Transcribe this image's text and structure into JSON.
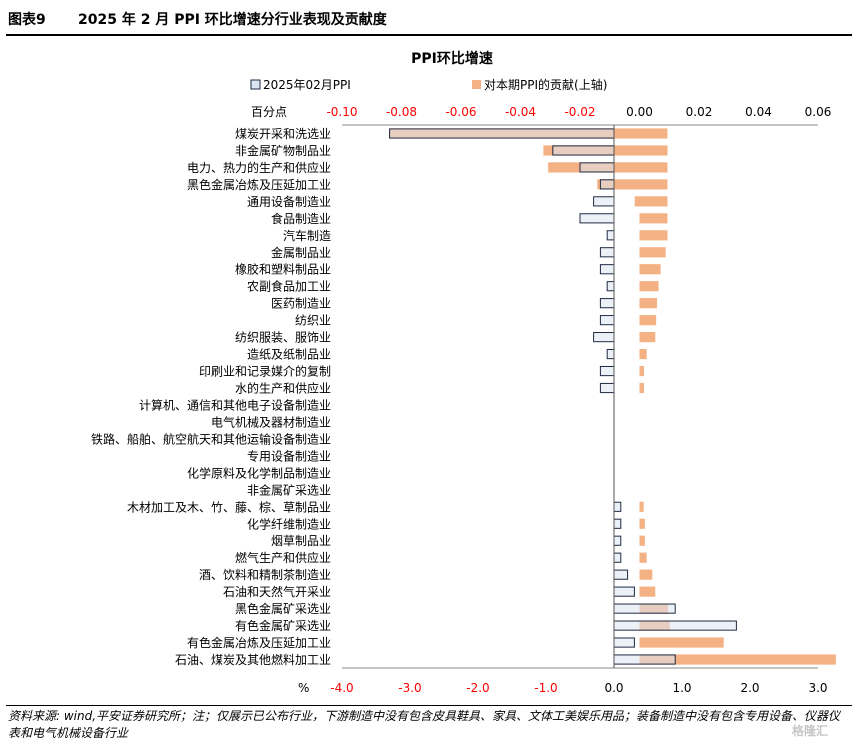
{
  "header": {
    "label": "图表9",
    "title": "2025 年 2 月 PPI 环比增速分行业表现及贡献度"
  },
  "source_note": "资料来源: wind,平安证券研究所；注；仅展示已公布行业，下游制造中没有包含皮具鞋具、家具、文体工美娱乐用品；装备制造中没有包含专用设备、仪器仪表和电气机械设备行业",
  "watermark": "格隆汇",
  "colors": {
    "ppi_fill": "#dce6f2",
    "ppi_stroke": "#1f2a44",
    "contrib_fill": "#f4b183",
    "red_tick": "#ff0000"
  },
  "chart_data": {
    "type": "bar",
    "orientation": "horizontal",
    "title": "PPI环比增速",
    "top_axis_label": "百分点",
    "bottom_axis_label": "%",
    "top_ticks": [
      "-0.10",
      "-0.08",
      "-0.06",
      "-0.04",
      "-0.02",
      "0.00",
      "0.02",
      "0.04",
      "0.06"
    ],
    "bottom_ticks": [
      "-4.0",
      "-3.0",
      "-2.0",
      "-1.0",
      "0.0",
      "1.0",
      "2.0",
      "3.0"
    ],
    "xlim_bottom": [
      -4.0,
      3.0
    ],
    "xlim_top": [
      -0.1,
      0.06
    ],
    "categories": [
      "煤炭开采和洗选业",
      "非金属矿物制品业",
      "电力、热力的生产和供应业",
      "黑色金属冶炼及压延加工业",
      "通用设备制造业",
      "食品制造业",
      "汽车制造",
      "金属制品业",
      "橡胶和塑料制品业",
      "农副食品加工业",
      "医药制造业",
      "纺织业",
      "纺织服装、服饰业",
      "造纸及纸制品业",
      "印刷业和记录媒介的复制",
      "水的生产和供应业",
      "计算机、通信和其他电子设备制造业",
      "电气机械及器材制造业",
      "铁路、船舶、航空航天和其他运输设备制造业",
      "专用设备制造业",
      "化学原料及化学制品制造业",
      "非金属矿采选业",
      "木材加工及木、竹、藤、棕、草制品业",
      "化学纤维制造业",
      "烟草制品业",
      "燃气生产和供应业",
      "酒、饮料和精制茶制造业",
      "石油和天然气开采业",
      "黑色金属矿采选业",
      "有色金属矿采选业",
      "有色金属冶炼及压延加工业",
      "石油、煤炭及其他燃料加工业"
    ],
    "series": [
      {
        "name": "2025年02月PPI",
        "axis": "bottom",
        "values": [
          -3.3,
          -0.9,
          -0.5,
          -0.2,
          -0.3,
          -0.5,
          -0.1,
          -0.2,
          -0.2,
          -0.1,
          -0.2,
          -0.2,
          -0.3,
          -0.1,
          -0.2,
          -0.2,
          0,
          0,
          0,
          0,
          0,
          0,
          0.1,
          0.1,
          0.1,
          0.1,
          0.2,
          0.3,
          0.9,
          1.8,
          0.3,
          0.9
        ]
      },
      {
        "name": "对本期PPI的贡献(上轴)",
        "axis": "top",
        "values": [
          -0.0842,
          -0.0323,
          -0.0307,
          -0.0142,
          -0.0016,
          0,
          0,
          0,
          0,
          0,
          0,
          0,
          0,
          0,
          0,
          0,
          0,
          0,
          0,
          0,
          0,
          0,
          0,
          0,
          0,
          0,
          0,
          0,
          0.0043,
          0.0057,
          0.0283,
          0.0566
        ]
      }
    ],
    "contrib_offsets_top": [
      0.0094,
      0.0094,
      0.0094,
      0.0094,
      0.0094,
      0.0094,
      0.0094,
      0.0088,
      0.0071,
      0.0064,
      0.0059,
      0.0056,
      0.0053,
      0.0024,
      0.0015,
      0.0015,
      0,
      0,
      0,
      0,
      0,
      0,
      0.0014,
      0.0018,
      0.0018,
      0.0024,
      0.0043,
      0.0053,
      0.0053,
      0.0045,
      0,
      0.0094
    ]
  }
}
